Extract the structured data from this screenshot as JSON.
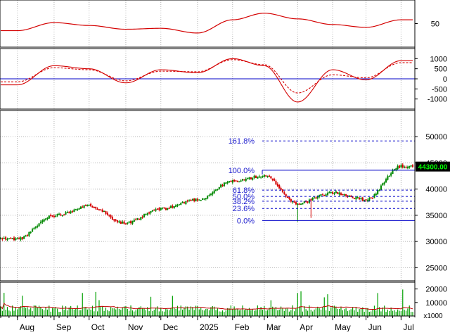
{
  "colors": {
    "background": "#ffffff",
    "grid": "#b4b4b4",
    "frame": "#000000",
    "indicator": "#d40000",
    "fib": "#0000c8",
    "fib_label": "#1a1acd",
    "up": "#008800",
    "down": "#d40000",
    "volume": "#00a000",
    "volume_ma": "#c00000",
    "last_price_bg": "#000000",
    "last_price_fg": "#00ff00"
  },
  "chart_data": [
    {
      "panel": "oscillator",
      "type": "line",
      "y_ticks": [
        "50"
      ],
      "ylim": [
        0,
        100
      ],
      "x": [
        "Aug",
        "Sep",
        "Oct",
        "Nov",
        "Dec",
        "2025",
        "Feb",
        "Mar",
        "Apr",
        "May",
        "Jun",
        "Jul"
      ],
      "series": [
        {
          "values": [
            35,
            52,
            46,
            38,
            40,
            30,
            58,
            72,
            60,
            48,
            42,
            58
          ]
        }
      ]
    },
    {
      "panel": "macd",
      "type": "line",
      "y_ticks": [
        "1000",
        "500",
        "0",
        "-500",
        "-1000"
      ],
      "ylim": [
        -1500,
        1500
      ],
      "x": [
        "Aug",
        "Sep",
        "Oct",
        "Nov",
        "Dec",
        "2025",
        "Feb",
        "Mar",
        "Apr",
        "May",
        "Jun",
        "Jul"
      ],
      "series": [
        {
          "values": [
            -300,
            650,
            500,
            -200,
            450,
            300,
            1000,
            650,
            -1150,
            450,
            -50,
            900
          ],
          "style": "solid"
        },
        {
          "values": [
            -150,
            550,
            450,
            -100,
            380,
            350,
            950,
            700,
            -700,
            200,
            50,
            800
          ],
          "style": "dashed"
        }
      ],
      "zero_line": true
    },
    {
      "panel": "price",
      "type": "candlestick",
      "y_ticks": [
        "50000",
        "45000",
        "40000",
        "35000",
        "30000",
        "25000"
      ],
      "ylim": [
        22500,
        55000
      ],
      "last_price": "44300.00",
      "fibonacci": {
        "labels": [
          "161.8%",
          "100.0%",
          "61.8%",
          "50.0%",
          "38.2%",
          "23.6%",
          "0.0%"
        ],
        "levels": [
          49200,
          43600,
          39800,
          38600,
          37700,
          36300,
          34000
        ]
      },
      "x": [
        "Aug",
        "Sep",
        "Oct",
        "Nov",
        "Dec",
        "2025",
        "Feb",
        "Mar",
        "Apr",
        "May",
        "Jun",
        "Jul"
      ],
      "close": [
        30500,
        35000,
        36800,
        33500,
        36200,
        38000,
        41500,
        42500,
        37300,
        39300,
        38000,
        44300
      ]
    },
    {
      "panel": "volume",
      "type": "bar",
      "y_ticks": [
        "20000",
        "10000"
      ],
      "unit": "x1000",
      "ylim": [
        0,
        25000
      ]
    }
  ],
  "axis": {
    "months": [
      "Aug",
      "Sep",
      "Oct",
      "Nov",
      "Dec",
      "2025",
      "Feb",
      "Mar",
      "Apr",
      "May",
      "Jun",
      "Jul"
    ]
  }
}
